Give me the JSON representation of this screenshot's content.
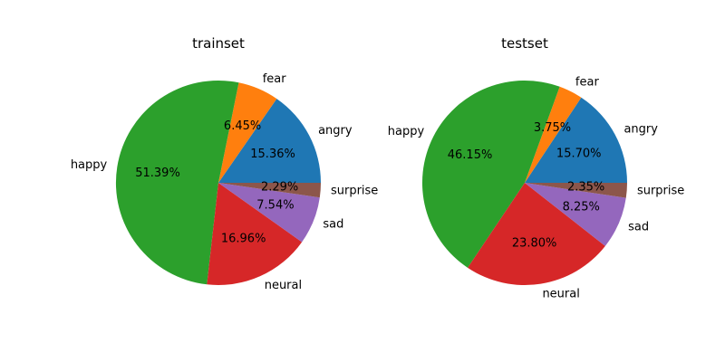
{
  "colors": {
    "angry": "#1f77b4",
    "fear": "#ff7f0e",
    "happy": "#2ca02c",
    "neural": "#d62728",
    "sad": "#9467bd",
    "surprise": "#8c564b"
  },
  "chart_data": [
    {
      "type": "pie",
      "title": "trainset",
      "categories": [
        "angry",
        "fear",
        "happy",
        "neural",
        "sad",
        "surprise"
      ],
      "values": [
        15.36,
        6.45,
        51.39,
        16.96,
        7.54,
        2.29
      ],
      "percent_labels": [
        "15.36%",
        "6.45%",
        "51.39%",
        "16.96%",
        "7.54%",
        "2.29%"
      ],
      "start_angle_deg": 0,
      "direction": "counterclockwise"
    },
    {
      "type": "pie",
      "title": "testset",
      "categories": [
        "angry",
        "fear",
        "happy",
        "neural",
        "sad",
        "surprise"
      ],
      "values": [
        15.7,
        3.75,
        46.15,
        23.8,
        8.25,
        2.35
      ],
      "percent_labels": [
        "15.70%",
        "3.75%",
        "46.15%",
        "23.80%",
        "8.25%",
        "2.35%"
      ],
      "start_angle_deg": 0,
      "direction": "counterclockwise"
    }
  ]
}
